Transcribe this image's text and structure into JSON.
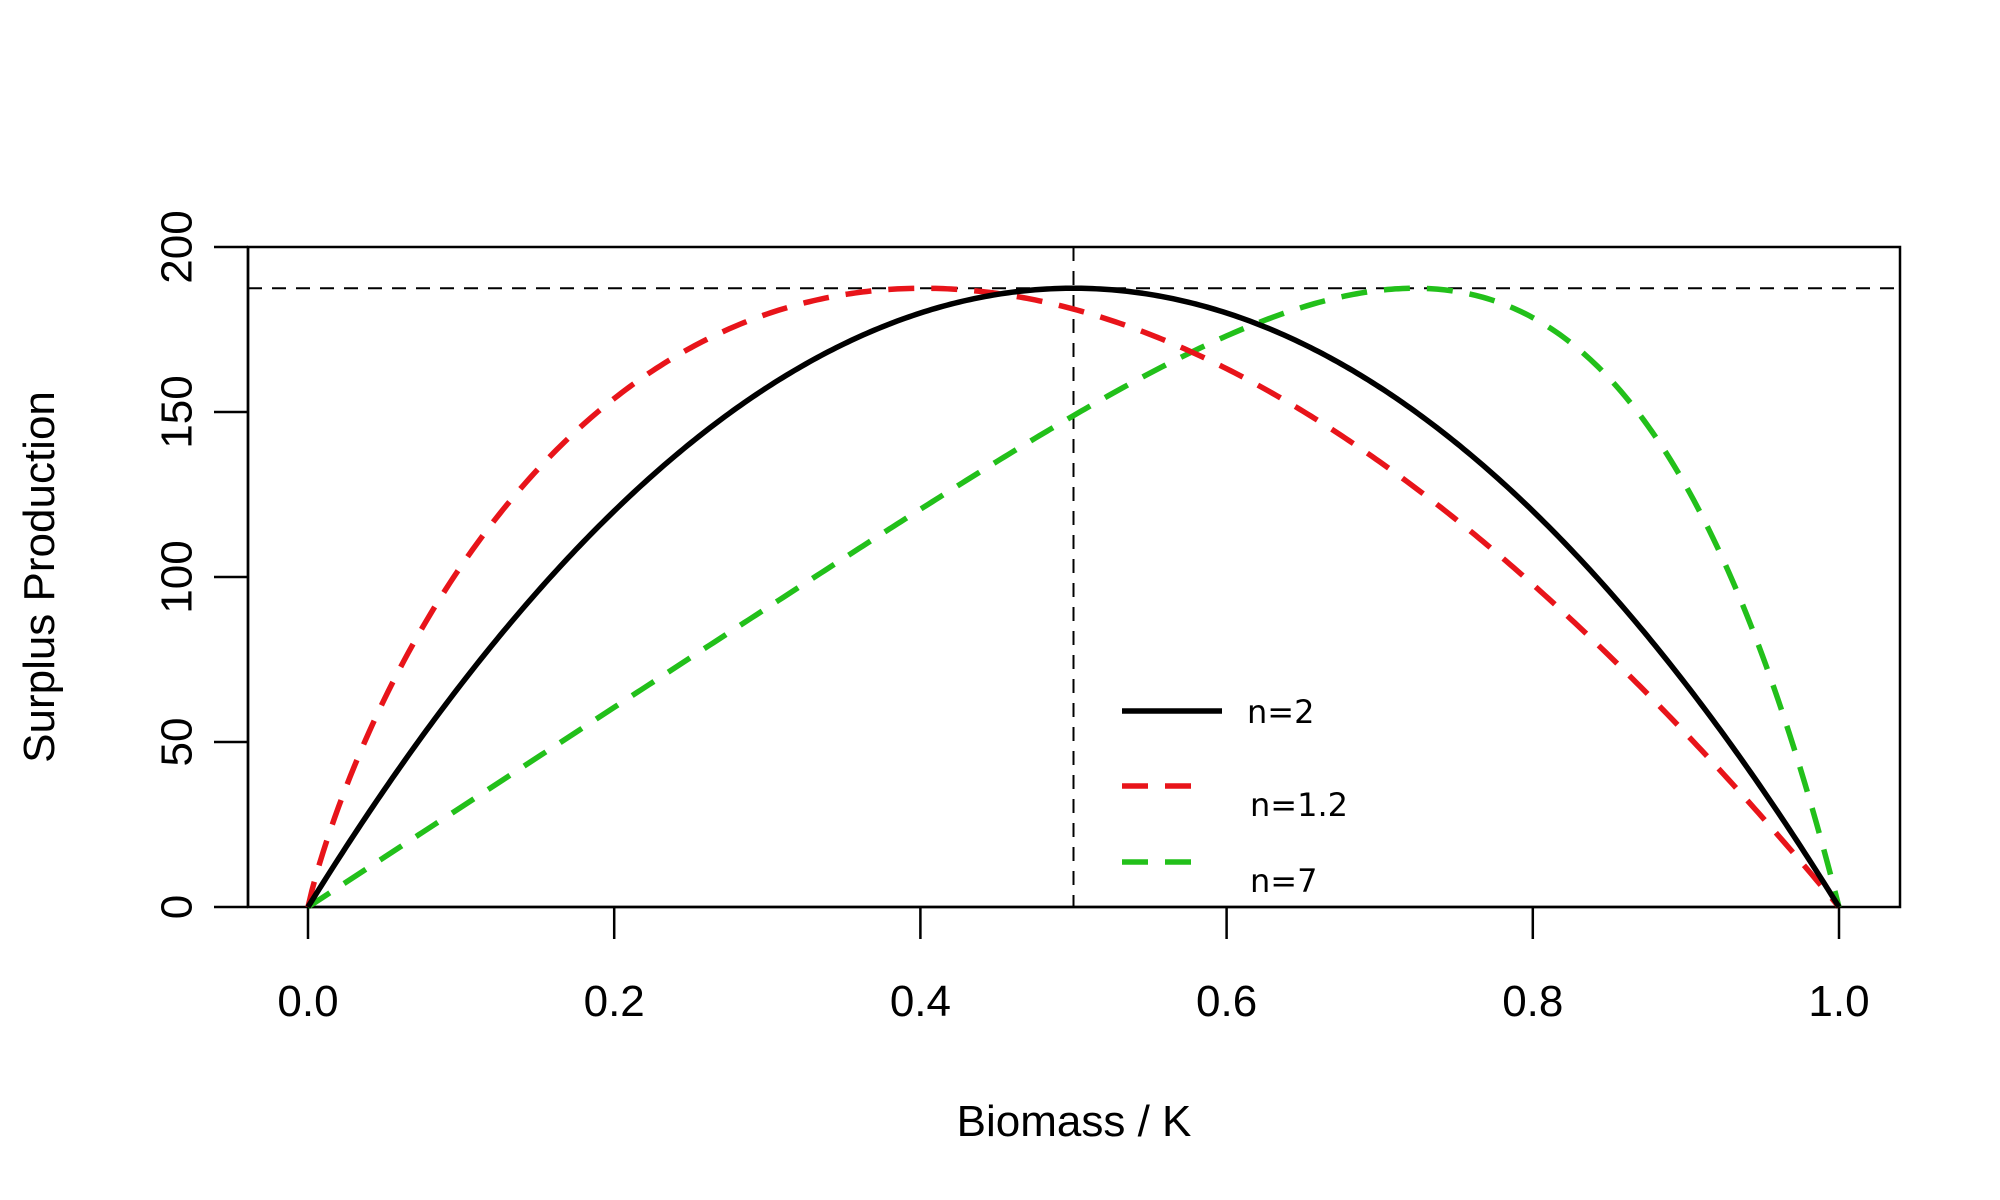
{
  "chart_data": {
    "type": "line",
    "title": "",
    "xlabel": "Biomass / K",
    "ylabel": "Surplus Production",
    "xlim": [
      -0.04,
      1.04
    ],
    "ylim": [
      0,
      200
    ],
    "x_ticks": [
      "0.0",
      "0.2",
      "0.4",
      "0.6",
      "0.8",
      "1.0"
    ],
    "y_ticks": [
      "0",
      "50",
      "100",
      "150",
      "200"
    ],
    "msy": 187.5,
    "reference_lines": {
      "horizontal_y": 187.5,
      "vertical_x": 0.5
    },
    "legend_position": "bottom-center",
    "grid": false,
    "series": [
      {
        "name": "n=2",
        "color": "#000000",
        "dash": "solid",
        "exponent": 2
      },
      {
        "name": "n=1.2",
        "color": "#e8141a",
        "dash": "dashed",
        "exponent": 1.2
      },
      {
        "name": "n=7",
        "color": "#22c01a",
        "dash": "dashed",
        "exponent": 7
      }
    ]
  }
}
